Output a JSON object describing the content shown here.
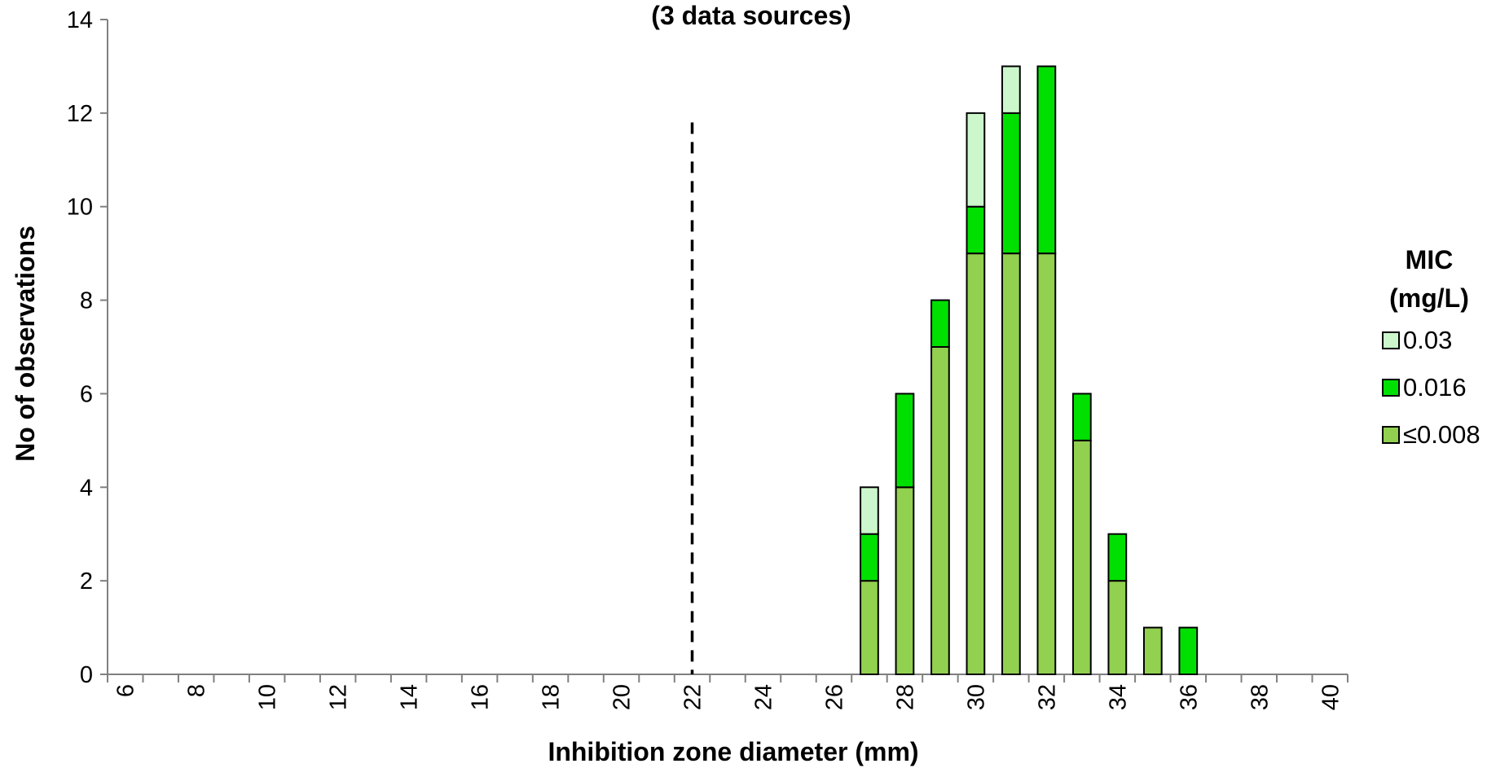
{
  "chart_data": {
    "type": "bar",
    "subtitle": "(3 data sources)",
    "xlabel": "Inhibition zone diameter (mm)",
    "ylabel": "No of observations",
    "ylim": [
      0,
      14
    ],
    "yticks": [
      0,
      2,
      4,
      6,
      8,
      10,
      12,
      14
    ],
    "categories": [
      6,
      7,
      8,
      9,
      10,
      11,
      12,
      13,
      14,
      15,
      16,
      17,
      18,
      19,
      20,
      21,
      22,
      23,
      24,
      25,
      26,
      27,
      28,
      29,
      30,
      31,
      32,
      33,
      34,
      35,
      36,
      37,
      38,
      39,
      40
    ],
    "tick_labels": [
      "6",
      "8",
      "10",
      "12",
      "14",
      "16",
      "18",
      "20",
      "22",
      "24",
      "26",
      "28",
      "30",
      "32",
      "34",
      "36",
      "38",
      "40"
    ],
    "stacked": true,
    "series": [
      {
        "name": "≤0.008",
        "color": "#92d050",
        "values": [
          0,
          0,
          0,
          0,
          0,
          0,
          0,
          0,
          0,
          0,
          0,
          0,
          0,
          0,
          0,
          0,
          0,
          0,
          0,
          0,
          0,
          2,
          4,
          7,
          9,
          9,
          9,
          5,
          2,
          1,
          0,
          0,
          0,
          0,
          0
        ]
      },
      {
        "name": "0.016",
        "color": "#00e000",
        "values": [
          0,
          0,
          0,
          0,
          0,
          0,
          0,
          0,
          0,
          0,
          0,
          0,
          0,
          0,
          0,
          0,
          0,
          0,
          0,
          0,
          0,
          1,
          2,
          1,
          1,
          3,
          4,
          1,
          1,
          0,
          1,
          0,
          0,
          0,
          0
        ]
      },
      {
        "name": "0.03",
        "color": "#ccf7cc",
        "values": [
          0,
          0,
          0,
          0,
          0,
          0,
          0,
          0,
          0,
          0,
          0,
          0,
          0,
          0,
          0,
          0,
          0,
          0,
          0,
          0,
          0,
          1,
          0,
          0,
          2,
          1,
          0,
          0,
          0,
          0,
          0,
          0,
          0,
          0,
          0
        ]
      }
    ],
    "breakpoint": {
      "x": 22,
      "y_max": 11.8,
      "style": "dashed"
    },
    "legend": {
      "title_line1": "MIC",
      "title_line2": "(mg/L)",
      "placement": "right"
    },
    "grid": false
  }
}
